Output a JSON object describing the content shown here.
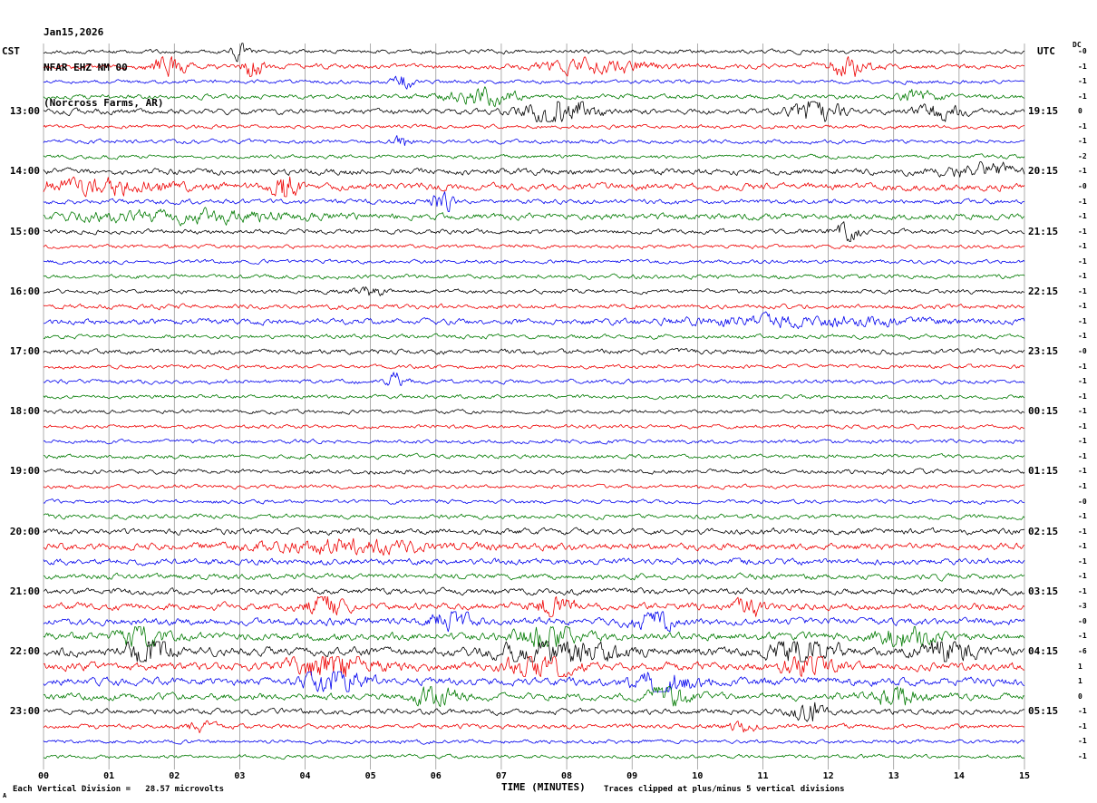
{
  "header": {
    "date": "Jan15,2026",
    "station": "NFAR EHZ NM 00",
    "location": "(Norcross Farms, AR)"
  },
  "corner_labels": {
    "left_timezone": "CST",
    "right_timezone": "UTC",
    "dc": "DC"
  },
  "footer": {
    "division_text": "Each Vertical Division =   28.57 microvolts",
    "x_axis_title": "TIME (MINUTES)",
    "clip_text": "Traces clipped at plus/minus 5 vertical divisions",
    "corner_mark": "A"
  },
  "chart_data": {
    "type": "line",
    "subtype": "seismogram_helicorder",
    "title": "NFAR EHZ NM 00 (Norcross Farms, AR) Jan15,2026",
    "xlabel": "TIME (MINUTES)",
    "ylabel": "",
    "x_ticks": [
      "00",
      "01",
      "02",
      "03",
      "04",
      "05",
      "06",
      "07",
      "08",
      "09",
      "10",
      "11",
      "12",
      "13",
      "14",
      "15"
    ],
    "x_range_minutes": [
      0,
      15
    ],
    "minutes_per_trace": 15,
    "num_traces": 48,
    "grid": true,
    "trace_color_cycle": [
      "#000000",
      "#ee0000",
      "#0000ee",
      "#007a00"
    ],
    "start_time_cst": "12:00",
    "left_hour_labels_cst": [
      "13:00",
      "14:00",
      "15:00",
      "16:00",
      "17:00",
      "18:00",
      "19:00",
      "20:00",
      "21:00",
      "22:00",
      "23:00"
    ],
    "right_hour_labels_utc": [
      "19:15",
      "20:15",
      "21:15",
      "22:15",
      "23:15",
      "00:15",
      "01:15",
      "02:15",
      "03:15",
      "04:15",
      "05:15"
    ],
    "dc_offsets": [
      "-0",
      "-1",
      "-1",
      "-1",
      "0",
      "-1",
      "-1",
      "-2",
      "-1",
      "-0",
      "-1",
      "-1",
      "-1",
      "-1",
      "-1",
      "-1",
      "-1",
      "-1",
      "-1",
      "-1",
      "-0",
      "-1",
      "-1",
      "-1",
      "-1",
      "-1",
      "-1",
      "-1",
      "-1",
      "-1",
      "-0",
      "-1",
      "-1",
      "-1",
      "-1",
      "-1",
      "-1",
      "-3",
      "-0",
      "-1",
      "-6",
      "1",
      "1",
      "0",
      "-1",
      "-1",
      "-1",
      "-1"
    ],
    "clip_divisions": 5,
    "microvolts_per_division": 28.57,
    "noise_levels": [
      1.1,
      1.3,
      1.0,
      1.2,
      1.4,
      1.0,
      1.0,
      1.0,
      1.6,
      1.8,
      1.2,
      1.6,
      1.2,
      1.0,
      1.0,
      1.1,
      1.1,
      1.2,
      1.5,
      1.1,
      1.3,
      1.0,
      1.1,
      1.0,
      1.0,
      1.0,
      1.0,
      1.1,
      1.2,
      1.0,
      1.0,
      1.2,
      1.5,
      1.8,
      1.6,
      1.5,
      1.6,
      1.8,
      1.8,
      2.0,
      2.2,
      2.0,
      2.0,
      1.8,
      1.4,
      1.2,
      1.0,
      1.0
    ],
    "events": [
      {
        "trace": 0,
        "t": 3.0,
        "dur": 0.12,
        "amp": 4
      },
      {
        "trace": 1,
        "t": 1.9,
        "dur": 0.25,
        "amp": 4
      },
      {
        "trace": 1,
        "t": 3.2,
        "dur": 0.15,
        "amp": 5
      },
      {
        "trace": 1,
        "t": 8.5,
        "dur": 0.9,
        "amp": 2.5
      },
      {
        "trace": 1,
        "t": 12.3,
        "dur": 0.35,
        "amp": 4
      },
      {
        "trace": 2,
        "t": 5.5,
        "dur": 0.15,
        "amp": 4
      },
      {
        "trace": 3,
        "t": 6.7,
        "dur": 0.5,
        "amp": 3.5
      },
      {
        "trace": 3,
        "t": 13.4,
        "dur": 0.3,
        "amp": 2.5
      },
      {
        "trace": 4,
        "t": 7.9,
        "dur": 0.5,
        "amp": 6
      },
      {
        "trace": 4,
        "t": 11.8,
        "dur": 0.35,
        "amp": 5
      },
      {
        "trace": 4,
        "t": 13.7,
        "dur": 0.3,
        "amp": 4
      },
      {
        "trace": 6,
        "t": 5.5,
        "dur": 0.12,
        "amp": 4
      },
      {
        "trace": 8,
        "t": 14.4,
        "dur": 0.6,
        "amp": 2
      },
      {
        "trace": 9,
        "t": 0.8,
        "dur": 1.2,
        "amp": 2
      },
      {
        "trace": 9,
        "t": 3.7,
        "dur": 0.18,
        "amp": 5
      },
      {
        "trace": 10,
        "t": 6.1,
        "dur": 0.12,
        "amp": 9
      },
      {
        "trace": 11,
        "t": 2.2,
        "dur": 1.8,
        "amp": 1.5
      },
      {
        "trace": 12,
        "t": 12.3,
        "dur": 0.2,
        "amp": 4
      },
      {
        "trace": 16,
        "t": 5.0,
        "dur": 0.2,
        "amp": 2.5
      },
      {
        "trace": 18,
        "t": 11.6,
        "dur": 1.8,
        "amp": 1.5
      },
      {
        "trace": 22,
        "t": 5.4,
        "dur": 0.15,
        "amp": 3.5
      },
      {
        "trace": 33,
        "t": 4.6,
        "dur": 1.4,
        "amp": 1.5
      },
      {
        "trace": 37,
        "t": 4.3,
        "dur": 0.3,
        "amp": 3
      },
      {
        "trace": 37,
        "t": 7.8,
        "dur": 0.3,
        "amp": 3
      },
      {
        "trace": 37,
        "t": 10.8,
        "dur": 0.2,
        "amp": 3
      },
      {
        "trace": 38,
        "t": 6.2,
        "dur": 0.3,
        "amp": 3
      },
      {
        "trace": 38,
        "t": 9.3,
        "dur": 0.3,
        "amp": 3
      },
      {
        "trace": 39,
        "t": 1.5,
        "dur": 0.3,
        "amp": 3
      },
      {
        "trace": 39,
        "t": 7.7,
        "dur": 0.4,
        "amp": 4
      },
      {
        "trace": 39,
        "t": 13.2,
        "dur": 0.4,
        "amp": 3
      },
      {
        "trace": 40,
        "t": 1.6,
        "dur": 0.3,
        "amp": 4
      },
      {
        "trace": 40,
        "t": 7.9,
        "dur": 0.8,
        "amp": 3
      },
      {
        "trace": 40,
        "t": 11.6,
        "dur": 0.5,
        "amp": 3
      },
      {
        "trace": 40,
        "t": 13.8,
        "dur": 0.4,
        "amp": 3
      },
      {
        "trace": 41,
        "t": 4.4,
        "dur": 0.6,
        "amp": 4
      },
      {
        "trace": 41,
        "t": 7.6,
        "dur": 0.5,
        "amp": 3
      },
      {
        "trace": 41,
        "t": 11.7,
        "dur": 0.4,
        "amp": 3
      },
      {
        "trace": 42,
        "t": 4.5,
        "dur": 0.4,
        "amp": 4
      },
      {
        "trace": 42,
        "t": 9.5,
        "dur": 0.5,
        "amp": 3
      },
      {
        "trace": 43,
        "t": 6.0,
        "dur": 0.3,
        "amp": 3
      },
      {
        "trace": 43,
        "t": 9.6,
        "dur": 0.3,
        "amp": 3
      },
      {
        "trace": 43,
        "t": 13.0,
        "dur": 0.4,
        "amp": 3
      },
      {
        "trace": 44,
        "t": 11.7,
        "dur": 0.25,
        "amp": 4
      },
      {
        "trace": 45,
        "t": 2.4,
        "dur": 0.2,
        "amp": 2.5
      },
      {
        "trace": 45,
        "t": 10.7,
        "dur": 0.2,
        "amp": 2.5
      }
    ]
  }
}
